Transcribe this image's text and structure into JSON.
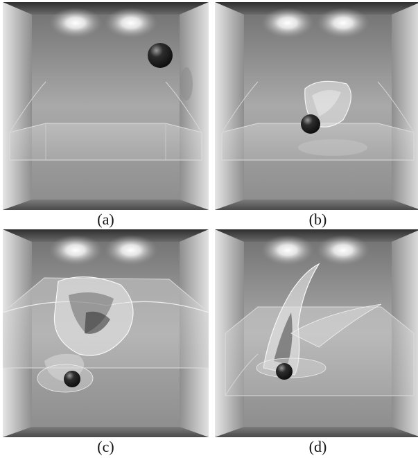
{
  "panels": [
    {
      "id": "a",
      "caption": "(a)"
    },
    {
      "id": "b",
      "caption": "(b)"
    },
    {
      "id": "c",
      "caption": "(c)"
    },
    {
      "id": "d",
      "caption": "(d)"
    }
  ]
}
